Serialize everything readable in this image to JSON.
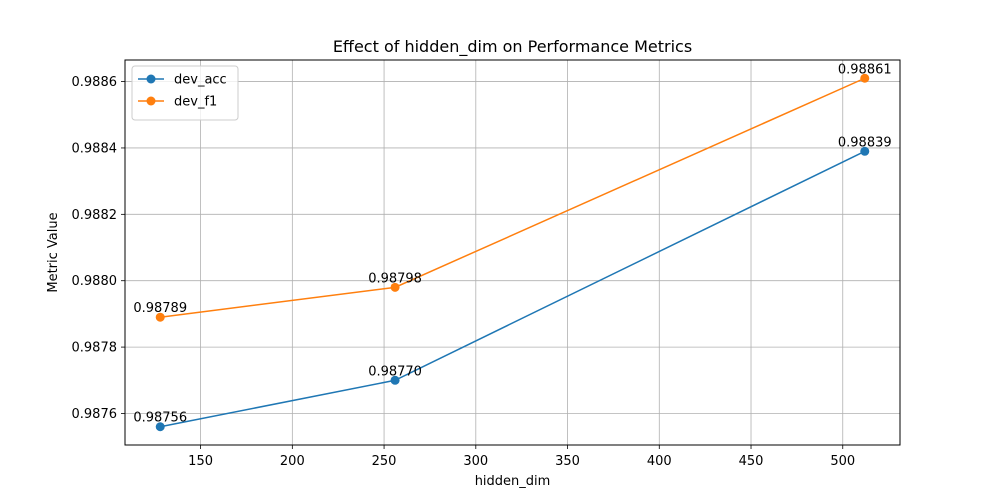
{
  "chart_data": {
    "type": "line",
    "title": "Effect of hidden_dim on Performance Metrics",
    "xlabel": "hidden_dim",
    "ylabel": "Metric Value",
    "x": [
      128,
      256,
      512
    ],
    "series": [
      {
        "name": "dev_acc",
        "color": "#1f77b4",
        "values": [
          0.98756,
          0.9877,
          0.98839
        ],
        "labels": [
          "0.98756",
          "0.98770",
          "0.98839"
        ]
      },
      {
        "name": "dev_f1",
        "color": "#ff7f0e",
        "values": [
          0.98789,
          0.98798,
          0.98861
        ],
        "labels": [
          "0.98789",
          "0.98798",
          "0.98861"
        ]
      }
    ],
    "xlim": [
      108.8,
      531.2
    ],
    "ylim": [
      0.987505,
      0.988665
    ],
    "xticks": [
      150,
      200,
      250,
      300,
      350,
      400,
      450,
      500
    ],
    "xtick_labels": [
      "150",
      "200",
      "250",
      "300",
      "350",
      "400",
      "450",
      "500"
    ],
    "yticks": [
      0.9876,
      0.9878,
      0.988,
      0.9882,
      0.9884,
      0.9886
    ],
    "ytick_labels": [
      "0.9876",
      "0.9878",
      "0.9880",
      "0.9882",
      "0.9884",
      "0.9886"
    ],
    "grid": true,
    "legend": "upper-left",
    "marker": "circle"
  }
}
